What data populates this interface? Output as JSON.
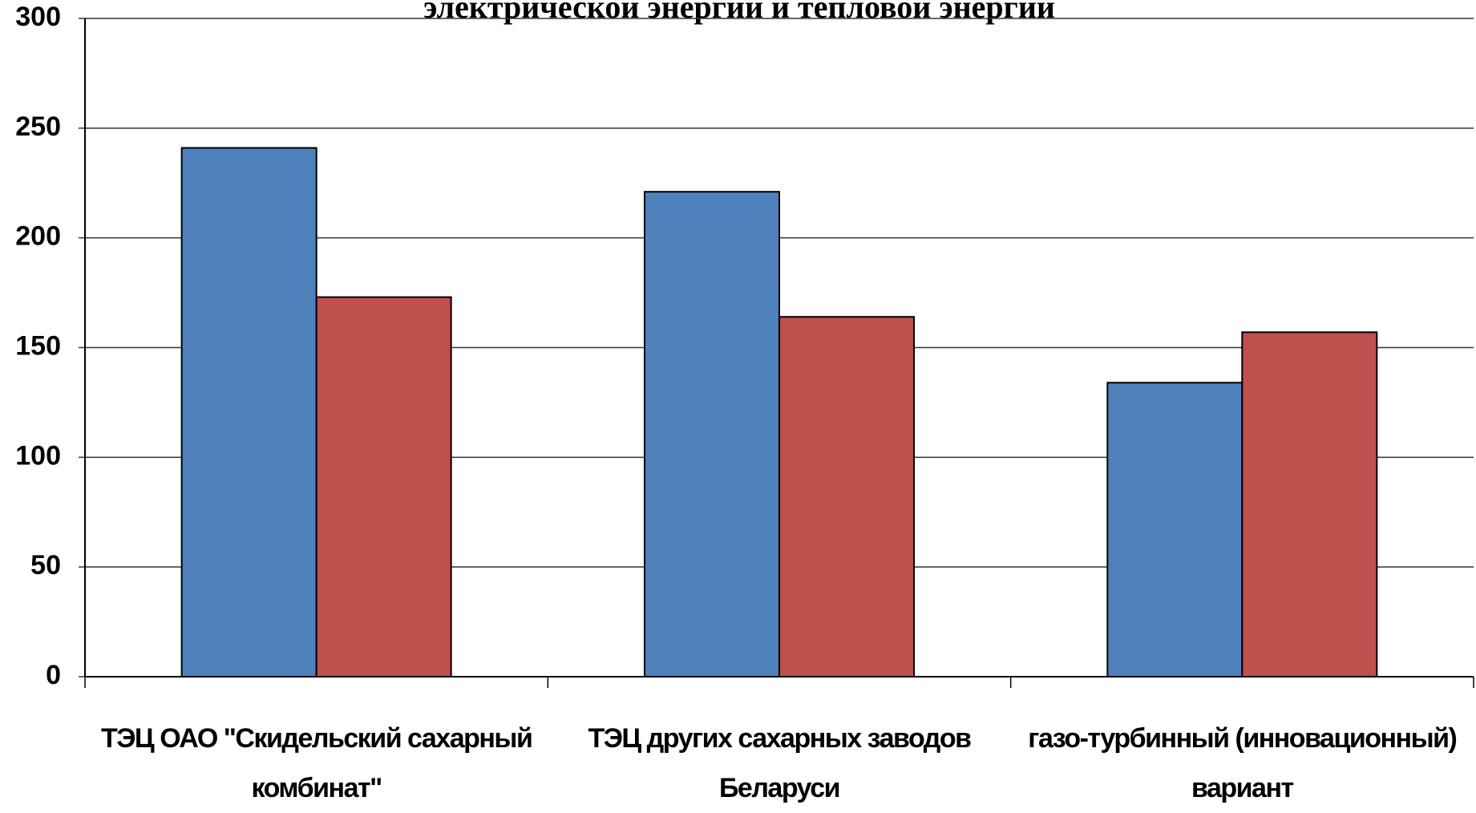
{
  "chart_data": {
    "type": "bar",
    "title": "электрической энергии и тепловой энергии",
    "categories": [
      "ТЭЦ ОАО \"Скидельский сахарный комбинат\"",
      "ТЭЦ других сахарных заводов Беларуси",
      "газо-турбинный (инновационный) вариант"
    ],
    "series": [
      {
        "color": "#4f81bd",
        "values": [
          241,
          221,
          134
        ]
      },
      {
        "color": "#c0504d",
        "values": [
          173,
          164,
          157
        ]
      }
    ],
    "ylim": [
      0,
      300
    ],
    "yticks": [
      0,
      50,
      100,
      150,
      200,
      250,
      300
    ],
    "grid": true
  }
}
